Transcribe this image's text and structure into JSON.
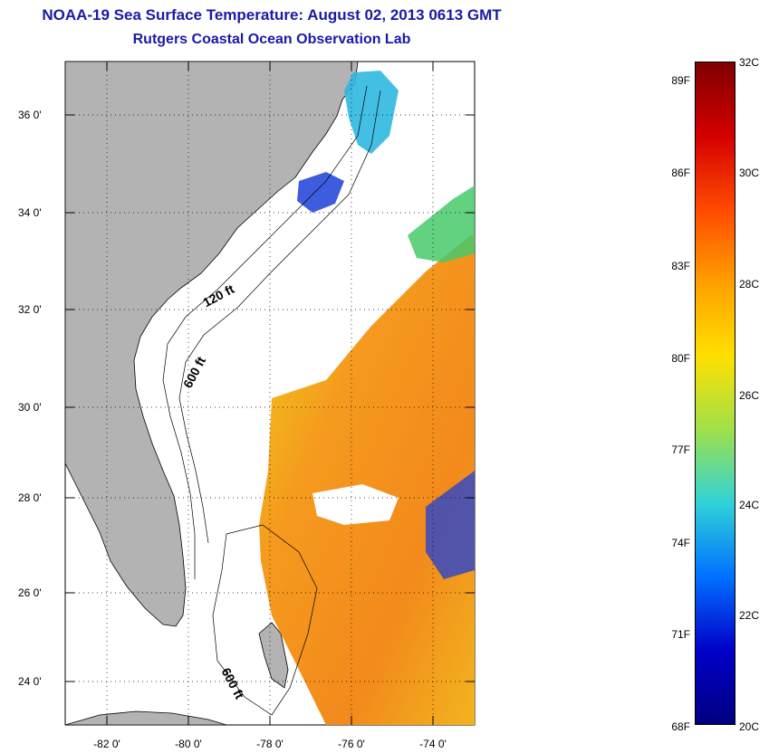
{
  "title": {
    "line1": "NOAA-19 Sea Surface Temperature:  August 02, 2013 0613 GMT",
    "line2": "Rutgers Coastal Ocean Observation Lab"
  },
  "map": {
    "lat_ticks": [
      "36 0'",
      "34 0'",
      "32 0'",
      "30 0'",
      "28 0'",
      "26 0'",
      "24 0'"
    ],
    "lon_ticks": [
      "-82 0'",
      "-80 0'",
      "-78 0'",
      "-76 0'",
      "-74 0'"
    ],
    "contour_labels": [
      "120 ft",
      "600 ft",
      "600 ft"
    ],
    "colors": {
      "land": "#b3b3b3",
      "sea_warm": "#f59a1e",
      "sea_yellow": "#f2d21a",
      "sea_green": "#47c96a",
      "sea_blue": "#1c3fd8"
    }
  },
  "colorbar": {
    "f_labels": [
      "89F",
      "86F",
      "83F",
      "80F",
      "77F",
      "74F",
      "71F",
      "68F"
    ],
    "c_labels": [
      "32C",
      "30C",
      "28C",
      "26C",
      "24C",
      "22C",
      "20C"
    ],
    "colors": [
      "#7f0000",
      "#d40000",
      "#ff4a00",
      "#ffa000",
      "#ffe000",
      "#9ee04a",
      "#2fd2d8",
      "#0070ff",
      "#0000c8",
      "#000080"
    ]
  }
}
